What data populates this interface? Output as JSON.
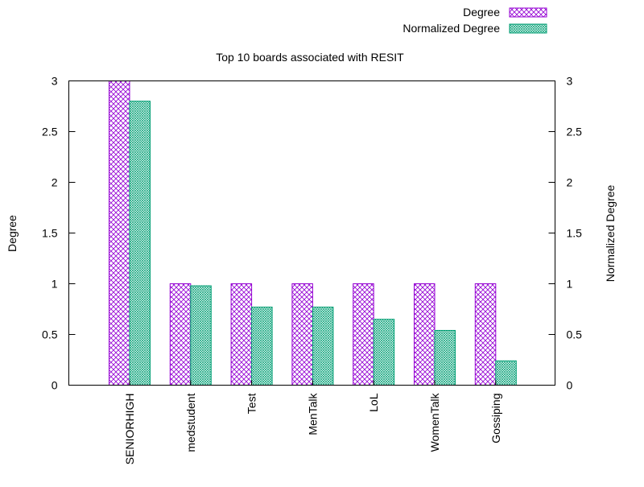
{
  "chart_data": {
    "type": "bar",
    "title": "Top 10 boards associated with RESIT",
    "xlabel": "",
    "ylabel": "Degree",
    "y2label": "Normalized Degree",
    "ylim": [
      0,
      3
    ],
    "y2lim": [
      0,
      3
    ],
    "yticks": [
      "0",
      "0.5",
      "1",
      "1.5",
      "2",
      "2.5",
      "3"
    ],
    "y2ticks": [
      "0",
      "0.5",
      "1",
      "1.5",
      "2",
      "2.5",
      "3"
    ],
    "grid": false,
    "legend": "top-right",
    "categories": [
      "SENIORHIGH",
      "medstudent",
      "Test",
      "MenTalk",
      "LoL",
      "WomenTalk",
      "Gossiping"
    ],
    "series": [
      {
        "name": "Degree",
        "axis": "left",
        "color": "#9400d3",
        "pattern": "crosshatch",
        "values": [
          3,
          1,
          1,
          1,
          1,
          1,
          1
        ]
      },
      {
        "name": "Normalized Degree",
        "axis": "right",
        "color": "#009e73",
        "pattern": "fine-mesh",
        "values": [
          2.8,
          0.98,
          0.77,
          0.77,
          0.65,
          0.54,
          0.24
        ]
      }
    ]
  }
}
